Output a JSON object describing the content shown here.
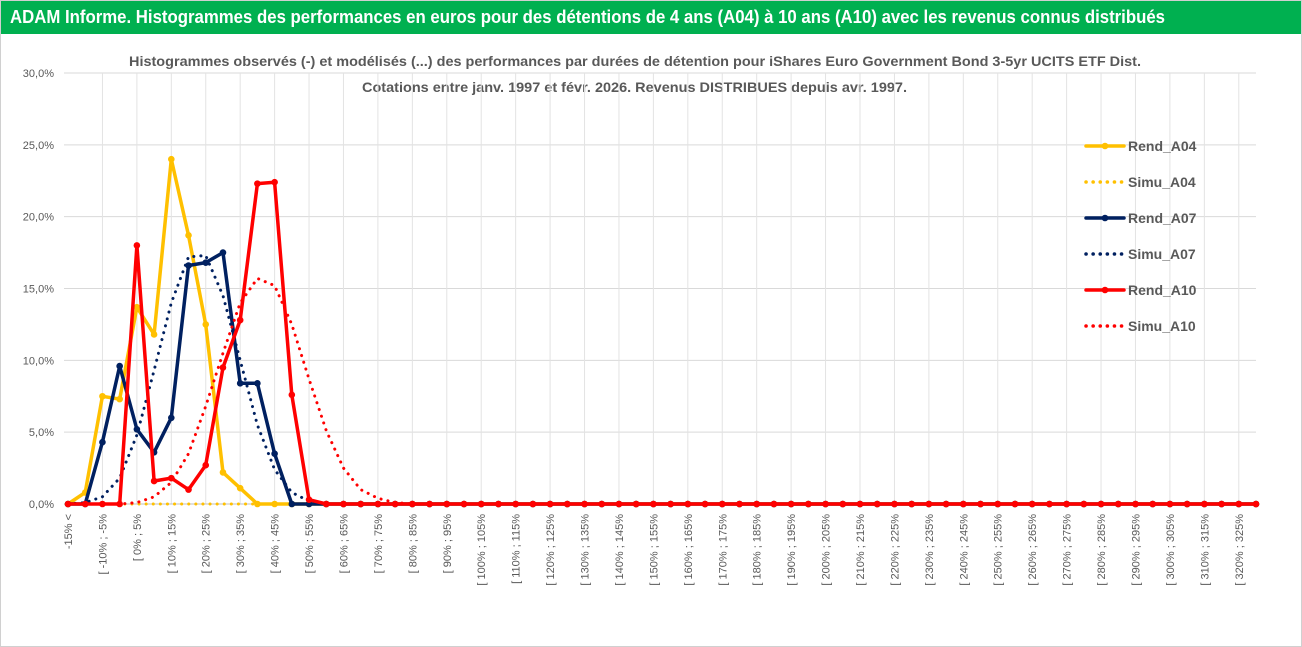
{
  "chart_data": {
    "type": "line",
    "header": "ADAM Informe. Histogrammes des performances en euros pour des détentions de 4 ans (A04) à 10 ans (A10) avec les revenus connus distribués",
    "title": "Histogrammes observés (-) et modélisés (...) des performances par durées de détention pour iShares Euro Government Bond 3-5yr UCITS ETF Dist.",
    "subtitle": "Cotations entre janv. 1997 et févr. 2026. Revenus DISTRIBUES depuis avr. 1997.",
    "categories": [
      "-15% <",
      null,
      "[ -10% ; -5%",
      null,
      "[ 0% ; 5%",
      null,
      "[ 10% ; 15%",
      null,
      "[ 20% ; 25%",
      null,
      "[ 30% ; 35%",
      null,
      "[ 40% ; 45%",
      null,
      "[ 50% ; 55%",
      null,
      "[ 60% ; 65%",
      null,
      "[ 70% ; 75%",
      null,
      "[ 80% ; 85%",
      null,
      "[ 90% ; 95%",
      null,
      "[ 100% ; 105%",
      null,
      "[ 110% ; 115%",
      null,
      "[ 120% ; 125%",
      null,
      "[ 130% ; 135%",
      null,
      "[ 140% ; 145%",
      null,
      "[ 150% ; 155%",
      null,
      "[ 160% ; 165%",
      null,
      "[ 170% ; 175%",
      null,
      "[ 180% ; 185%",
      null,
      "[ 190% ; 195%",
      null,
      "[ 200% ; 205%",
      null,
      "[ 210% ; 215%",
      null,
      "[ 220% ; 225%",
      null,
      "[ 230% ; 235%",
      null,
      "[ 240% ; 245%",
      null,
      "[ 250% ; 255%",
      null,
      "[ 260% ; 265%",
      null,
      "[ 270% ; 275%",
      null,
      "[ 280% ; 285%",
      null,
      "[ 290% ; 295%",
      null,
      "[ 300% ; 305%",
      null,
      "[ 310% ; 315%",
      null,
      "[ 320% ; 325%",
      null
    ],
    "series": [
      {
        "name": "Rend_A04",
        "color": "#ffc000",
        "dashed": false,
        "markers": true,
        "values": [
          0,
          0.8,
          7.5,
          7.3,
          13.7,
          11.8,
          24.0,
          18.7,
          12.5,
          2.2,
          1.1,
          0,
          0,
          0,
          0,
          0,
          0,
          0,
          0,
          0,
          0,
          0,
          0,
          0,
          0,
          0,
          0,
          0,
          0,
          0,
          0,
          0,
          0,
          0,
          0,
          0,
          0,
          0,
          0,
          0,
          0,
          0,
          0,
          0,
          0,
          0,
          0,
          0,
          0,
          0,
          0,
          0,
          0,
          0,
          0,
          0,
          0,
          0,
          0,
          0,
          0,
          0,
          0,
          0,
          0,
          0,
          0,
          0,
          0,
          0
        ]
      },
      {
        "name": "Simu_A04",
        "color": "#ffc000",
        "dashed": true,
        "markers": false,
        "values": [
          0,
          0,
          0,
          0,
          0,
          0,
          0,
          0,
          0,
          0,
          0,
          0,
          0,
          0,
          0,
          0,
          0,
          0,
          0,
          0,
          0,
          0,
          0,
          0,
          0,
          0,
          0,
          0,
          0,
          0,
          0,
          0,
          0,
          0,
          0,
          0,
          0,
          0,
          0,
          0,
          0,
          0,
          0,
          0,
          0,
          0,
          0,
          0,
          0,
          0,
          0,
          0,
          0,
          0,
          0,
          0,
          0,
          0,
          0,
          0,
          0,
          0,
          0,
          0,
          0,
          0,
          0,
          0,
          0,
          0
        ]
      },
      {
        "name": "Rend_A07",
        "color": "#002060",
        "dashed": false,
        "markers": true,
        "values": [
          0,
          0,
          4.3,
          9.6,
          5.2,
          3.6,
          6.0,
          16.6,
          16.8,
          17.5,
          8.4,
          8.4,
          3.5,
          0,
          0,
          0,
          0,
          0,
          0,
          0,
          0,
          0,
          0,
          0,
          0,
          0,
          0,
          0,
          0,
          0,
          0,
          0,
          0,
          0,
          0,
          0,
          0,
          0,
          0,
          0,
          0,
          0,
          0,
          0,
          0,
          0,
          0,
          0,
          0,
          0,
          0,
          0,
          0,
          0,
          0,
          0,
          0,
          0,
          0,
          0,
          0,
          0,
          0,
          0,
          0,
          0,
          0,
          0,
          0,
          0
        ]
      },
      {
        "name": "Simu_A07",
        "color": "#002060",
        "dashed": true,
        "markers": false,
        "values": [
          0,
          0.1,
          0.5,
          1.8,
          4.8,
          9.3,
          14.0,
          17.2,
          17.3,
          14.5,
          10.0,
          5.5,
          2.4,
          0.8,
          0.2,
          0,
          0,
          0,
          0,
          0,
          0,
          0,
          0,
          0,
          0,
          0,
          0,
          0,
          0,
          0,
          0,
          0,
          0,
          0,
          0,
          0,
          0,
          0,
          0,
          0,
          0,
          0,
          0,
          0,
          0,
          0,
          0,
          0,
          0,
          0,
          0,
          0,
          0,
          0,
          0,
          0,
          0,
          0,
          0,
          0,
          0,
          0,
          0,
          0,
          0,
          0,
          0,
          0,
          0,
          0
        ]
      },
      {
        "name": "Rend_A10",
        "color": "#ff0000",
        "dashed": false,
        "markers": true,
        "values": [
          0,
          0,
          0,
          0,
          18.0,
          1.6,
          1.8,
          1.0,
          2.7,
          9.5,
          12.8,
          22.3,
          22.4,
          7.6,
          0.3,
          0,
          0,
          0,
          0,
          0,
          0,
          0,
          0,
          0,
          0,
          0,
          0,
          0,
          0,
          0,
          0,
          0,
          0,
          0,
          0,
          0,
          0,
          0,
          0,
          0,
          0,
          0,
          0,
          0,
          0,
          0,
          0,
          0,
          0,
          0,
          0,
          0,
          0,
          0,
          0,
          0,
          0,
          0,
          0,
          0,
          0,
          0,
          0,
          0,
          0,
          0,
          0,
          0,
          0,
          0
        ]
      },
      {
        "name": "Simu_A10",
        "color": "#ff0000",
        "dashed": true,
        "markers": false,
        "values": [
          0,
          0,
          0,
          0,
          0.1,
          0.5,
          1.5,
          3.5,
          6.8,
          10.5,
          14.0,
          15.7,
          15.2,
          12.5,
          8.7,
          5.1,
          2.5,
          1.0,
          0.4,
          0.1,
          0,
          0,
          0,
          0,
          0,
          0,
          0,
          0,
          0,
          0,
          0,
          0,
          0,
          0,
          0,
          0,
          0,
          0,
          0,
          0,
          0,
          0,
          0,
          0,
          0,
          0,
          0,
          0,
          0,
          0,
          0,
          0,
          0,
          0,
          0,
          0,
          0,
          0,
          0,
          0,
          0,
          0,
          0,
          0,
          0,
          0,
          0,
          0,
          0,
          0
        ]
      }
    ],
    "ylim": [
      0,
      30
    ],
    "yticks": [
      {
        "value": 0,
        "label": "0,0%"
      },
      {
        "value": 5,
        "label": "5,0%"
      },
      {
        "value": 10,
        "label": "10,0%"
      },
      {
        "value": 15,
        "label": "15,0%"
      },
      {
        "value": 20,
        "label": "20,0%"
      },
      {
        "value": 25,
        "label": "25,0%"
      },
      {
        "value": 30,
        "label": "30,0%"
      }
    ],
    "grid": true,
    "legend": "right",
    "header_color": "#00b050"
  }
}
